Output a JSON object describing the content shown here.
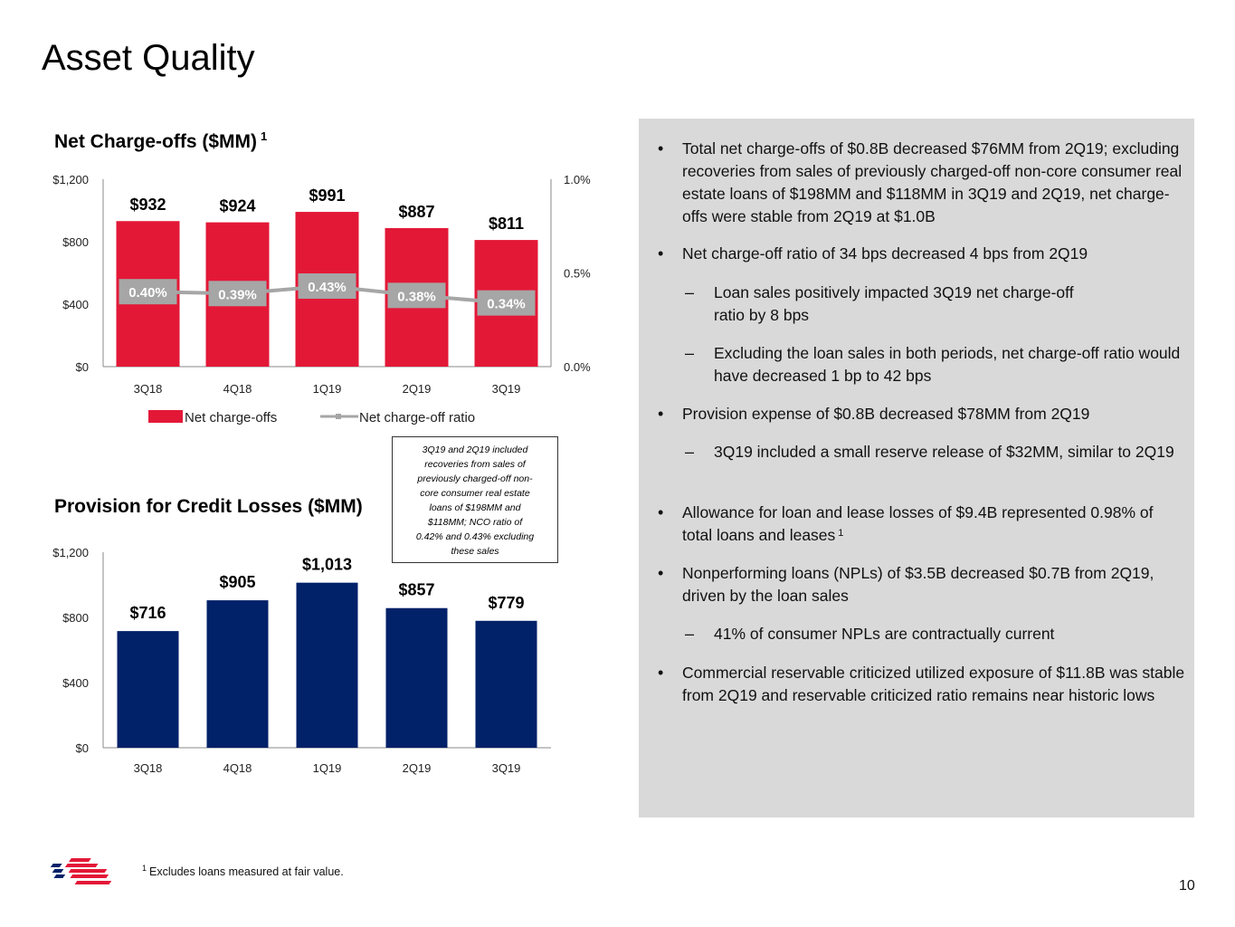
{
  "page": {
    "title": "Asset Quality",
    "page_number": "10",
    "footnote_marker": "1",
    "footnote": "Excludes loans measured at fair value.",
    "logo": "bank-flag-logo-icon"
  },
  "callout": {
    "lines": [
      "3Q19 and 2Q19 included",
      "recoveries from sales of",
      "previously charged-off non-",
      "core consumer real estate",
      "loans of $198MM and",
      "$118MM; NCO ratio of",
      "0.42% and 0.43% excluding",
      "these sales"
    ]
  },
  "chart_data": [
    {
      "type": "bar",
      "title": "Net Charge-offs ($MM)",
      "title_superscript": "1",
      "categories": [
        "3Q18",
        "4Q18",
        "1Q19",
        "2Q19",
        "3Q19"
      ],
      "series": [
        {
          "name": "Net charge-offs",
          "type": "bar",
          "axis": "left",
          "color": "#e31837",
          "values": [
            932,
            924,
            991,
            887,
            811
          ],
          "labels": [
            "$932",
            "$924",
            "$991",
            "$887",
            "$811"
          ]
        },
        {
          "name": "Net charge-off ratio",
          "type": "line",
          "axis": "right",
          "color": "#a6a6a6",
          "values": [
            0.4,
            0.39,
            0.43,
            0.38,
            0.34
          ],
          "labels": [
            "0.40%",
            "0.39%",
            "0.43%",
            "0.38%",
            "0.34%"
          ]
        }
      ],
      "ylim": [
        0,
        1200
      ],
      "y_ticks": [
        "$0",
        "$400",
        "$800",
        "$1,200"
      ],
      "y_tick_values": [
        0,
        400,
        800,
        1200
      ],
      "y2lim": [
        0,
        1.0
      ],
      "y2_ticks": [
        "0.0%",
        "0.5%",
        "1.0%"
      ],
      "y2_tick_values": [
        0,
        0.5,
        1.0
      ],
      "legend": [
        "Net charge-offs",
        "Net charge-off ratio"
      ],
      "legend_position": "bottom",
      "grid": false
    },
    {
      "type": "bar",
      "title": "Provision for Credit Losses ($MM)",
      "categories": [
        "3Q18",
        "4Q18",
        "1Q19",
        "2Q19",
        "3Q19"
      ],
      "series": [
        {
          "name": "Provision for credit losses",
          "color": "#012169",
          "values": [
            716,
            905,
            1013,
            857,
            779
          ],
          "labels": [
            "$716",
            "$905",
            "$1,013",
            "$857",
            "$779"
          ]
        }
      ],
      "ylim": [
        0,
        1200
      ],
      "y_ticks": [
        "$0",
        "$400",
        "$800",
        "$1,200"
      ],
      "y_tick_values": [
        0,
        400,
        800,
        1200
      ],
      "grid": false
    }
  ],
  "commentary": {
    "bullet_marker": "•",
    "dash_marker": "–",
    "items": [
      {
        "level": 1,
        "text": "Total net charge-offs of $0.8B decreased $76MM from 2Q19; excluding recoveries from sales of previously charged-off non-core consumer real estate loans of $198MM and $118MM in 3Q19 and 2Q19, net charge-offs were stable from 2Q19 at $1.0B"
      },
      {
        "level": 1,
        "text": "Net charge-off ratio of 34 bps decreased 4 bps from 2Q19"
      },
      {
        "level": 2,
        "text": "Loan sales positively impacted 3Q19 net charge-off ratio by 8 bps"
      },
      {
        "level": 2,
        "text": "Excluding the loan sales in both periods, net charge-off ratio would have decreased 1 bp to 42 bps"
      },
      {
        "level": 1,
        "text": "Provision expense of $0.8B decreased $78MM from 2Q19"
      },
      {
        "level": 2,
        "text": "3Q19 included a small reserve release of $32MM, similar to 2Q19"
      },
      {
        "level": 1,
        "text": "Allowance for loan and lease losses of $9.4B represented 0.98% of total loans and leases",
        "superscript": "1"
      },
      {
        "level": 1,
        "text": "Nonperforming loans (NPLs) of $3.5B decreased $0.7B from 2Q19, driven by the loan sales"
      },
      {
        "level": 2,
        "text": "41% of consumer NPLs are contractually current"
      },
      {
        "level": 1,
        "text": "Commercial reservable criticized utilized exposure of $11.8B was stable from 2Q19 and reservable criticized ratio remains near historic lows"
      }
    ]
  }
}
